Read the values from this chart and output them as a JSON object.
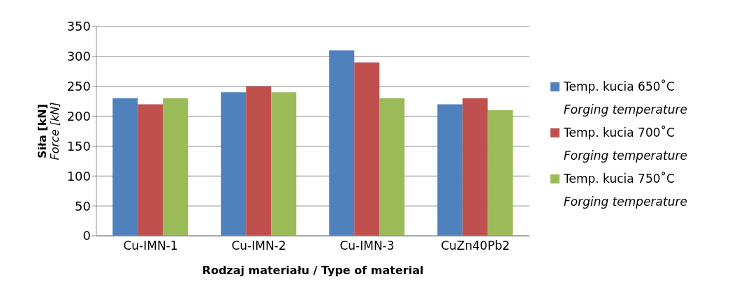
{
  "chart_data": {
    "type": "bar",
    "xlabel": "Rodzaj materiału / Type of material",
    "ylabel": "Siła [kN]\nForce [kN]",
    "categories": [
      "Cu-IMN-1",
      "Cu-IMN-2",
      "Cu-IMN-3",
      "CuZn40Pb2"
    ],
    "series": [
      {
        "name": "Temp. kucia 650˚C\nForging temperature",
        "color": "#4f81bd",
        "values": [
          230,
          240,
          310,
          220
        ]
      },
      {
        "name": "Temp. kucia 700˚C\nForging temperature",
        "color": "#c0504d",
        "values": [
          220,
          250,
          290,
          230
        ]
      },
      {
        "name": "Temp. kucia 750˚C\nForging temperature",
        "color": "#9bbb59",
        "values": [
          230,
          240,
          230,
          210
        ]
      }
    ],
    "ylim": [
      0,
      350
    ],
    "yticks": [
      0,
      50,
      100,
      150,
      200,
      250,
      300,
      350
    ],
    "grid": "y",
    "legend": "right"
  }
}
